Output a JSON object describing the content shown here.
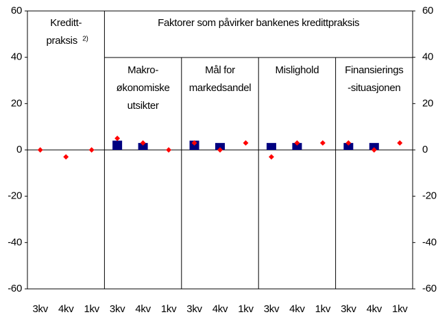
{
  "chart_data": {
    "type": "bar",
    "headers": [
      {
        "lines": [
          "Kreditt-",
          "praksis"
        ],
        "note": "2)"
      },
      {
        "lines": [
          "Faktorer som påvirker bankenes kredittpraksis"
        ]
      }
    ],
    "group_labels": [
      [
        "Makro-",
        "økonomiske",
        "utsikter"
      ],
      [
        "Mål for",
        "markedsandel"
      ],
      [
        "Mislighold"
      ],
      [
        "Finansierings",
        "-situasjonen"
      ]
    ],
    "categories": [
      "3kv",
      "4kv",
      "1kv",
      "3kv",
      "4kv",
      "1kv",
      "3kv",
      "4kv",
      "1kv",
      "3kv",
      "4kv",
      "1kv",
      "3kv",
      "4kv",
      "1kv"
    ],
    "series": [
      {
        "type": "bar",
        "color": "#000080",
        "values": [
          null,
          null,
          null,
          4,
          3,
          null,
          4,
          3,
          null,
          3,
          3,
          null,
          3,
          3,
          null
        ]
      },
      {
        "type": "scatter",
        "color": "#ff0000",
        "values": [
          0,
          -3,
          0,
          5,
          3,
          0,
          3,
          0,
          3,
          -3,
          3,
          3,
          3,
          0,
          3
        ]
      }
    ],
    "ylim": [
      -60,
      60
    ],
    "yticks": [
      -60,
      -40,
      -20,
      0,
      20,
      40,
      60
    ],
    "y2lim": [
      -60,
      60
    ],
    "y2ticks": [
      -60,
      -40,
      -20,
      0,
      20,
      40,
      60
    ],
    "grid": false
  }
}
